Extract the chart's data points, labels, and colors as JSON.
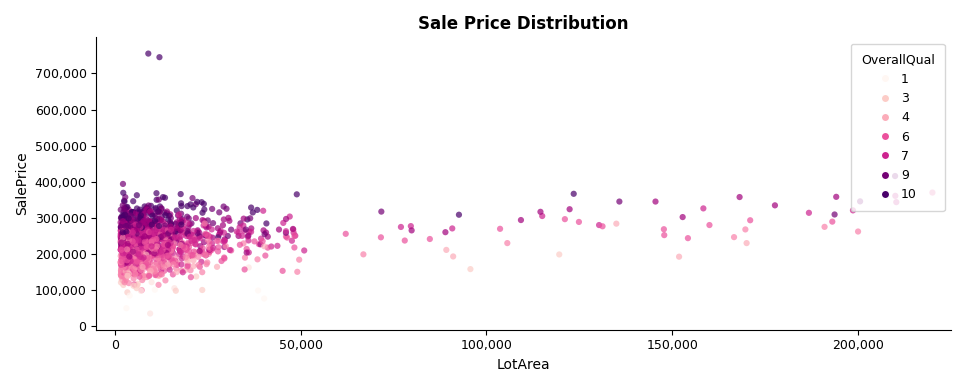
{
  "title": "Sale Price Distribution",
  "xlabel": "LotArea",
  "ylabel": "SalePrice",
  "xlim": [
    -5000,
    225000
  ],
  "ylim": [
    -10000,
    800000
  ],
  "xticks": [
    0,
    50000,
    100000,
    150000,
    200000
  ],
  "yticks": [
    0,
    100000,
    200000,
    300000,
    400000,
    500000,
    600000,
    700000
  ],
  "legend_title": "OverallQual",
  "legend_values": [
    1,
    3,
    4,
    6,
    7,
    9,
    10
  ],
  "cmap": "RdPu",
  "vmin": 1,
  "vmax": 10,
  "point_size": 20,
  "alpha": 0.7,
  "background_color": "#ffffff",
  "title_fontsize": 12,
  "label_fontsize": 10,
  "tick_fontsize": 9
}
